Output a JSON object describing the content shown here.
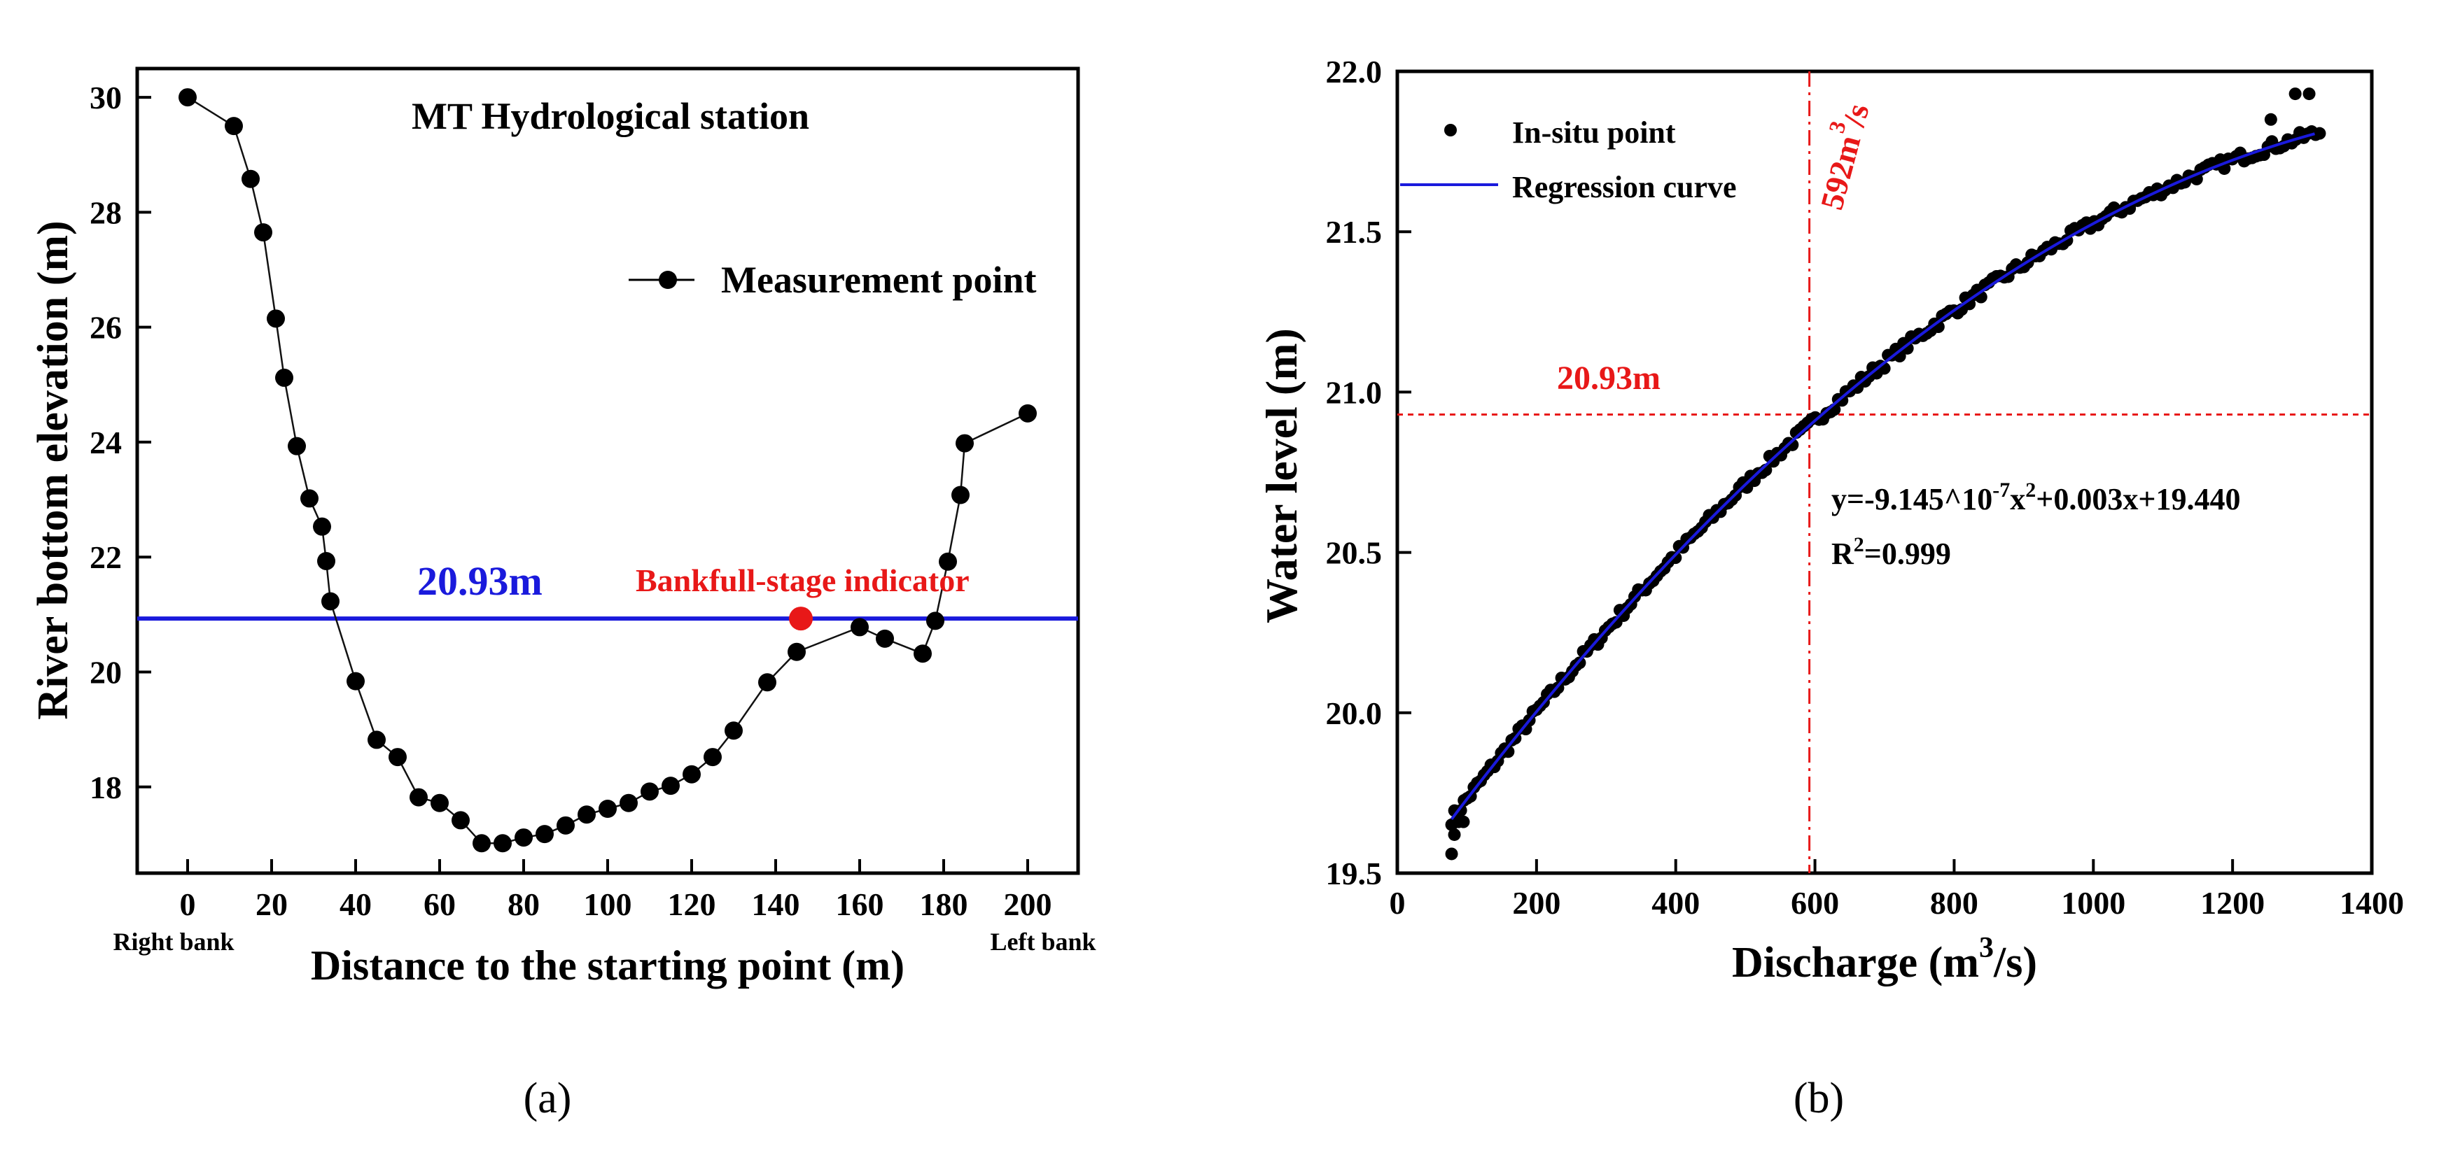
{
  "figure": {
    "panel_a_label": "(a)",
    "panel_b_label": "(b)"
  },
  "chart_data": [
    {
      "type": "line",
      "panel": "a",
      "title": "MT Hydrological station",
      "xlabel": "Distance to the starting point (m)",
      "ylabel": "River bottom elevation (m)",
      "xlim": [
        -12,
        212
      ],
      "ylim": [
        16.5,
        30.5
      ],
      "xticks": [
        0,
        20,
        40,
        60,
        80,
        100,
        120,
        140,
        160,
        180,
        200
      ],
      "yticks": [
        18,
        20,
        22,
        24,
        26,
        28,
        30
      ],
      "x_end_labels": {
        "left": "Right bank",
        "right": "Left bank"
      },
      "legend": {
        "label": "Measurement point",
        "position": "upper-right"
      },
      "series": [
        {
          "name": "Measurement point",
          "color": "#000000",
          "points": [
            [
              0,
              30.0
            ],
            [
              11,
              29.5
            ],
            [
              15,
              28.58
            ],
            [
              18,
              27.65
            ],
            [
              21,
              26.15
            ],
            [
              23,
              25.12
            ],
            [
              26,
              23.93
            ],
            [
              29,
              23.02
            ],
            [
              32,
              22.53
            ],
            [
              33,
              21.93
            ],
            [
              34,
              21.23
            ],
            [
              40,
              19.84
            ],
            [
              45,
              18.82
            ],
            [
              50,
              18.52
            ],
            [
              55,
              17.82
            ],
            [
              60,
              17.72
            ],
            [
              65,
              17.42
            ],
            [
              70,
              17.02
            ],
            [
              75,
              17.02
            ],
            [
              80,
              17.12
            ],
            [
              85,
              17.18
            ],
            [
              90,
              17.33
            ],
            [
              95,
              17.52
            ],
            [
              100,
              17.62
            ],
            [
              105,
              17.72
            ],
            [
              110,
              17.92
            ],
            [
              115,
              18.02
            ],
            [
              120,
              18.22
            ],
            [
              125,
              18.52
            ],
            [
              130,
              18.98
            ],
            [
              138,
              19.82
            ],
            [
              145,
              20.35
            ],
            [
              160,
              20.78
            ],
            [
              166,
              20.58
            ],
            [
              175,
              20.32
            ],
            [
              178,
              20.89
            ],
            [
              181,
              21.92
            ],
            [
              184,
              23.08
            ],
            [
              185,
              23.98
            ],
            [
              200,
              24.5
            ]
          ]
        }
      ],
      "reference_line": {
        "y": 20.93,
        "label": "20.93m",
        "color": "#1a1adc"
      },
      "indicator": {
        "x": 146,
        "y": 20.93,
        "label": "Bankfull-stage indicator",
        "color": "#e81818"
      }
    },
    {
      "type": "scatter",
      "panel": "b",
      "xlabel_main": "Discharge (m",
      "xlabel_sup": "3",
      "xlabel_tail": "/s)",
      "ylabel": "Water level (m)",
      "xlim": [
        0,
        1400
      ],
      "ylim": [
        19.5,
        22.0
      ],
      "xticks": [
        0,
        200,
        400,
        600,
        800,
        1000,
        1200,
        1400
      ],
      "yticks": [
        "19.5",
        "20.0",
        "20.5",
        "21.0",
        "21.5",
        "22.0"
      ],
      "legend": {
        "position": "upper-left",
        "entries": [
          {
            "label": "In-situ point",
            "symbol": "dot",
            "color": "#000000"
          },
          {
            "label": "Regression curve",
            "symbol": "line",
            "color": "#1a1adc"
          }
        ]
      },
      "regression": {
        "a": -9.145e-07,
        "b": 0.003,
        "c": 19.44,
        "x_range": [
          78,
          1325
        ],
        "color": "#1a1adc"
      },
      "equation": {
        "prefix": "y=-9.145^10",
        "sup1": "-7",
        "mid": "x",
        "sup2": "2",
        "tail": "+0.003x+19.440"
      },
      "r2": {
        "prefix": "R",
        "sup": "2",
        "tail": "=0.999"
      },
      "points_sample": {
        "x_start": 78,
        "x_end": 1325,
        "count": 230,
        "extra_points": [
          [
            78,
            19.56
          ],
          [
            82,
            19.62
          ],
          [
            88,
            19.66
          ],
          [
            95,
            19.66
          ],
          [
            1255,
            21.85
          ],
          [
            1290,
            21.93
          ],
          [
            1310,
            21.93
          ]
        ]
      },
      "vertical_ref": {
        "x": 592,
        "label_main": "592m",
        "label_sup": "3",
        "label_tail": "/s",
        "color": "#e81818"
      },
      "horizontal_ref": {
        "y": 20.93,
        "label": "20.93m",
        "color": "#e81818"
      }
    }
  ]
}
